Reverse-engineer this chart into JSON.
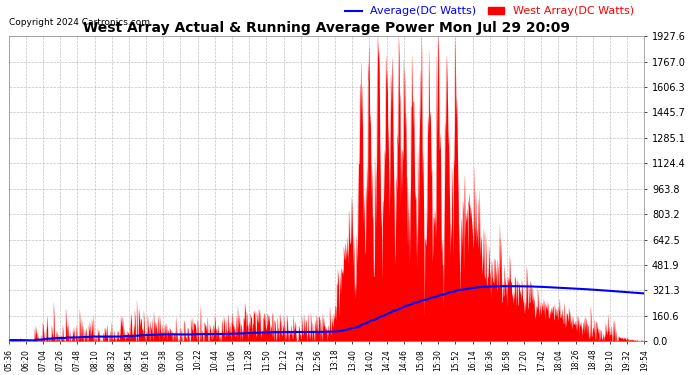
{
  "title": "West Array Actual & Running Average Power Mon Jul 29 20:09",
  "copyright": "Copyright 2024 Cartronics.com",
  "legend_avg": "Average(DC Watts)",
  "legend_west": "West Array(DC Watts)",
  "legend_avg_color": "blue",
  "legend_west_color": "red",
  "ymin": 0.0,
  "ymax": 1927.6,
  "yticks": [
    0.0,
    160.6,
    321.3,
    481.9,
    642.5,
    803.2,
    963.8,
    1124.4,
    1285.1,
    1445.7,
    1606.3,
    1767.0,
    1927.6
  ],
  "xtick_labels": [
    "05:36",
    "06:20",
    "07:04",
    "07:26",
    "07:48",
    "08:10",
    "08:32",
    "08:54",
    "09:16",
    "09:38",
    "10:00",
    "10:22",
    "10:44",
    "11:06",
    "11:28",
    "11:50",
    "12:12",
    "12:34",
    "12:56",
    "13:18",
    "13:40",
    "14:02",
    "14:24",
    "14:46",
    "15:08",
    "15:30",
    "15:52",
    "16:14",
    "16:36",
    "16:58",
    "17:20",
    "17:42",
    "18:04",
    "18:26",
    "18:48",
    "19:10",
    "19:32",
    "19:54"
  ],
  "background_color": "#ffffff",
  "plot_bg_color": "#ffffff",
  "grid_color": "#aaaaaa",
  "fill_color": "red",
  "line_color": "blue",
  "title_color": "black",
  "copyright_color": "black",
  "tick_label_color": "black"
}
